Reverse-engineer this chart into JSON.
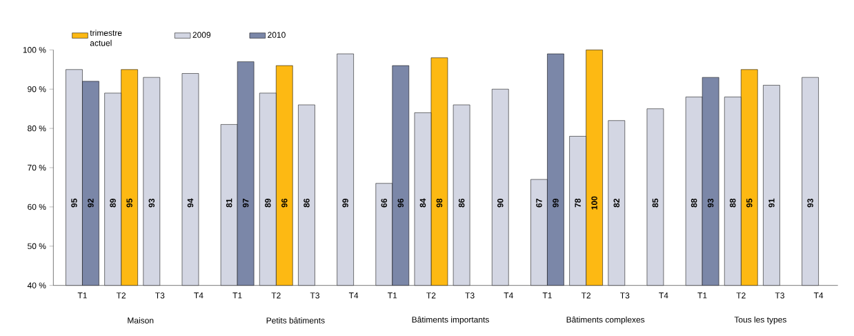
{
  "chart_data": {
    "type": "bar",
    "categories": [
      "T1",
      "T2",
      "T3",
      "T4",
      "T1",
      "T2",
      "T3",
      "T4",
      "T1",
      "T2",
      "T3",
      "T4",
      "T1",
      "T2",
      "T3",
      "T4",
      "T1",
      "T2",
      "T3",
      "T4"
    ],
    "series": [
      {
        "name": "trimestre actuel",
        "color": "#fdb913",
        "values": [
          null,
          95,
          null,
          null,
          null,
          96,
          null,
          null,
          null,
          98,
          null,
          null,
          null,
          100,
          null,
          null,
          null,
          95,
          null,
          null
        ]
      },
      {
        "name": "2009",
        "color": "#d3d6e3",
        "values": [
          95,
          89,
          93,
          94,
          81,
          89,
          86,
          99,
          66,
          84,
          86,
          90,
          67,
          78,
          82,
          85,
          88,
          88,
          91,
          93
        ]
      },
      {
        "name": "2010",
        "color": "#7b87a8",
        "values": [
          92,
          null,
          null,
          null,
          97,
          null,
          null,
          null,
          96,
          null,
          null,
          null,
          99,
          null,
          null,
          null,
          93,
          null,
          null,
          null
        ]
      }
    ],
    "annotations": [
      "Maison",
      "Petits bâtiments",
      "Bâtiments importants",
      "Bâtiments complexes",
      "Tous les types"
    ],
    "ylim": [
      40,
      100
    ],
    "yticks": [
      {
        "value": 40,
        "label": "40 %"
      },
      {
        "value": 50,
        "label": "50 %"
      },
      {
        "value": 60,
        "label": "60 %"
      },
      {
        "value": 70,
        "label": "70 %"
      },
      {
        "value": 80,
        "label": "80 %"
      },
      {
        "value": 90,
        "label": "90 %"
      },
      {
        "value": 100,
        "label": "100 %"
      }
    ],
    "data_labels": true,
    "legend": "top left"
  }
}
